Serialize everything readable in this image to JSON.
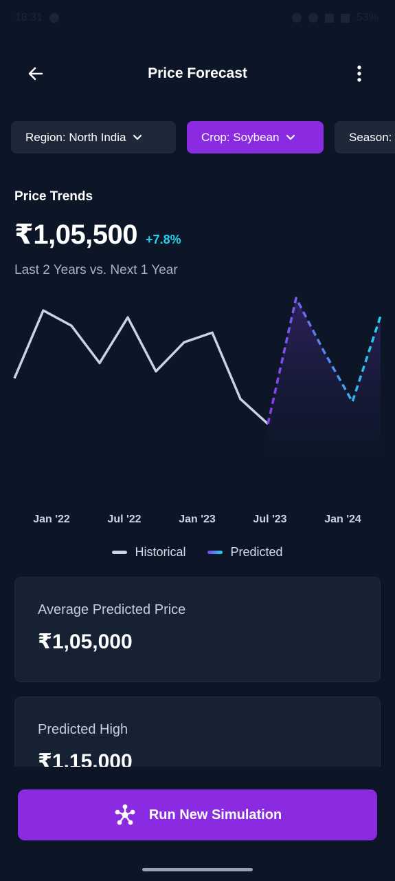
{
  "status_bar": {
    "time": "18:31",
    "battery": "53%"
  },
  "header": {
    "title": "Price Forecast",
    "back_icon": "arrow-left-icon",
    "more_icon": "more-vertical-icon"
  },
  "filters": [
    {
      "label": "Region: North India",
      "icon": "chevron-down-icon",
      "selected": false
    },
    {
      "label": "Crop: Soybean",
      "icon": "chevron-down-icon",
      "selected": true
    },
    {
      "label": "Season:",
      "icon": "chevron-down-icon",
      "selected": false
    }
  ],
  "trends": {
    "title": "Price Trends",
    "price": "₹1,05,500",
    "change": "+7.8%",
    "subtitle": "Last 2 Years vs. Next 1 Year"
  },
  "colors": {
    "accent": "#8a2be2",
    "historical": "#c6d4e6",
    "predicted_start": "#8a3bef",
    "predicted_end": "#22d3ee",
    "positive": "#22d3ee"
  },
  "chart_data": {
    "type": "line",
    "x_tick_labels": [
      "Jan '22",
      "Jul '22",
      "Jan '23",
      "Jul '23",
      "Jan '24"
    ],
    "grid": false,
    "legend": "bottom-center",
    "series": [
      {
        "name": "Historical",
        "style": "solid",
        "values": [
          0.42,
          0.91,
          0.8,
          0.53,
          0.86,
          0.47,
          0.68,
          0.75,
          0.27,
          0.09
        ]
      },
      {
        "name": "Predicted",
        "style": "dashed",
        "values": [
          0.09,
          1.0,
          0.61,
          0.25,
          0.87
        ]
      }
    ]
  },
  "legend": {
    "historical": "Historical",
    "predicted": "Predicted"
  },
  "cards": [
    {
      "label": "Average Predicted Price",
      "value": "₹1,05,000"
    },
    {
      "label": "Predicted High",
      "value": "₹1,15,000"
    }
  ],
  "action": {
    "label": "Run New Simulation",
    "icon": "network-nodes-icon"
  }
}
